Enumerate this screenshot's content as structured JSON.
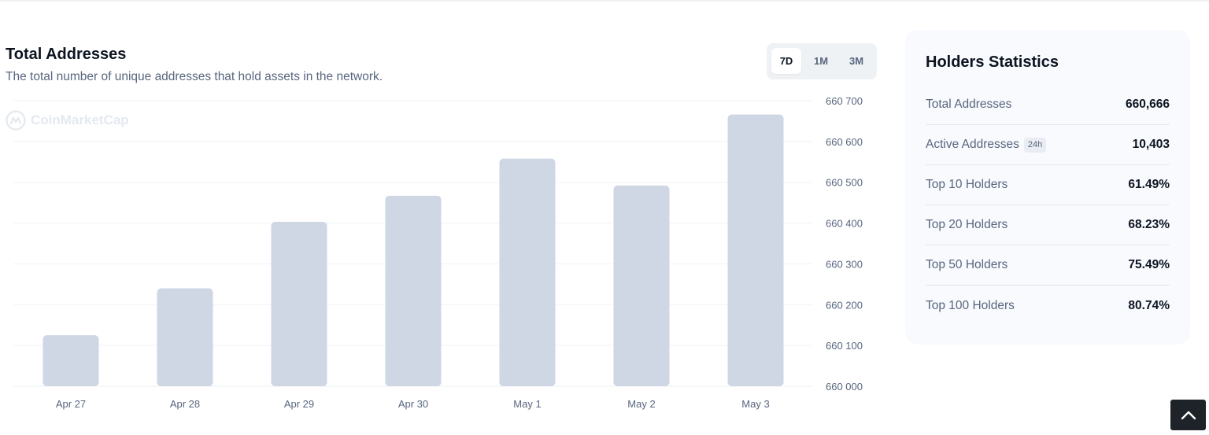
{
  "header": {
    "title": "Total Addresses",
    "subtitle": "The total number of unique addresses that hold assets in the network."
  },
  "range_toggle": {
    "options": [
      "7D",
      "1M",
      "3M"
    ],
    "selected": "7D"
  },
  "watermark": {
    "text": "CoinMarketCap"
  },
  "chart_data": {
    "type": "bar",
    "title": "Total Addresses",
    "categories": [
      "Apr 27",
      "Apr 28",
      "Apr 29",
      "Apr 30",
      "May 1",
      "May 2",
      "May 3"
    ],
    "values": [
      660125,
      660240,
      660403,
      660467,
      660558,
      660492,
      660666
    ],
    "ylim": [
      660000,
      660700
    ],
    "yticks": [
      660000,
      660100,
      660200,
      660300,
      660400,
      660500,
      660600,
      660700
    ],
    "ytick_labels": [
      "660 000",
      "660 100",
      "660 200",
      "660 300",
      "660 400",
      "660 500",
      "660 600",
      "660 700"
    ],
    "y_axis_side": "right",
    "grid": true,
    "bar_color": "#cfd6e4",
    "grid_color": "#eff2f5",
    "tick_color": "#58667e"
  },
  "holders": {
    "title": "Holders Statistics",
    "rows": [
      {
        "label": "Total Addresses",
        "value": "660,666",
        "badge": ""
      },
      {
        "label": "Active Addresses",
        "value": "10,403",
        "badge": "24h"
      },
      {
        "label": "Top 10 Holders",
        "value": "61.49%",
        "badge": ""
      },
      {
        "label": "Top 20 Holders",
        "value": "68.23%",
        "badge": ""
      },
      {
        "label": "Top 50 Holders",
        "value": "75.49%",
        "badge": ""
      },
      {
        "label": "Top 100 Holders",
        "value": "80.74%",
        "badge": ""
      }
    ]
  },
  "scroll_top": {
    "icon": "chevron-up-icon"
  }
}
